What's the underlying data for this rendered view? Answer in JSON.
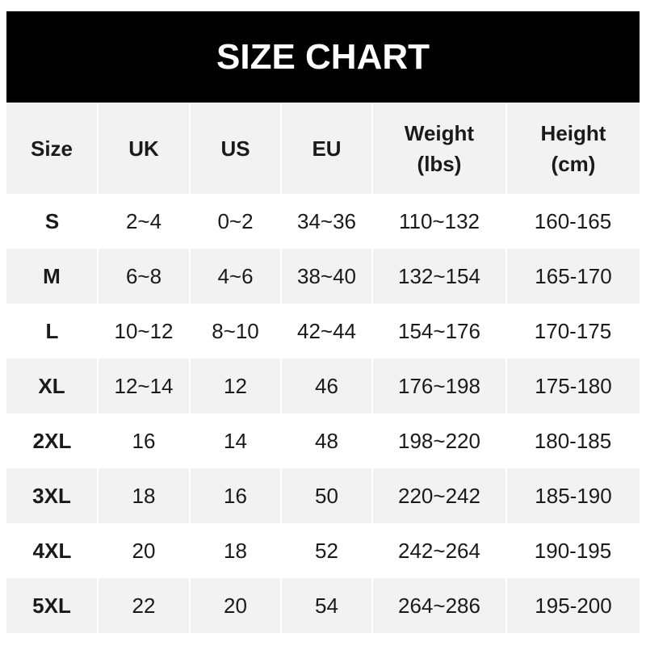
{
  "title": "SIZE CHART",
  "headers": [
    "Size",
    "UK",
    "US",
    "EU",
    "Weight\n(lbs)",
    "Height\n(cm)"
  ],
  "rows": [
    [
      "S",
      "2~4",
      "0~2",
      "34~36",
      "110~132",
      "160-165"
    ],
    [
      "M",
      "6~8",
      "4~6",
      "38~40",
      "132~154",
      "165-170"
    ],
    [
      "L",
      "10~12",
      "8~10",
      "42~44",
      "154~176",
      "170-175"
    ],
    [
      "XL",
      "12~14",
      "12",
      "46",
      "176~198",
      "175-180"
    ],
    [
      "2XL",
      "16",
      "14",
      "48",
      "198~220",
      "180-185"
    ],
    [
      "3XL",
      "18",
      "16",
      "50",
      "220~242",
      "185-190"
    ],
    [
      "4XL",
      "20",
      "18",
      "52",
      "242~264",
      "190-195"
    ],
    [
      "5XL",
      "22",
      "20",
      "54",
      "264~286",
      "195-200"
    ]
  ],
  "colors": {
    "header_bg": "#000000",
    "stripe": "#f2f2f2"
  }
}
